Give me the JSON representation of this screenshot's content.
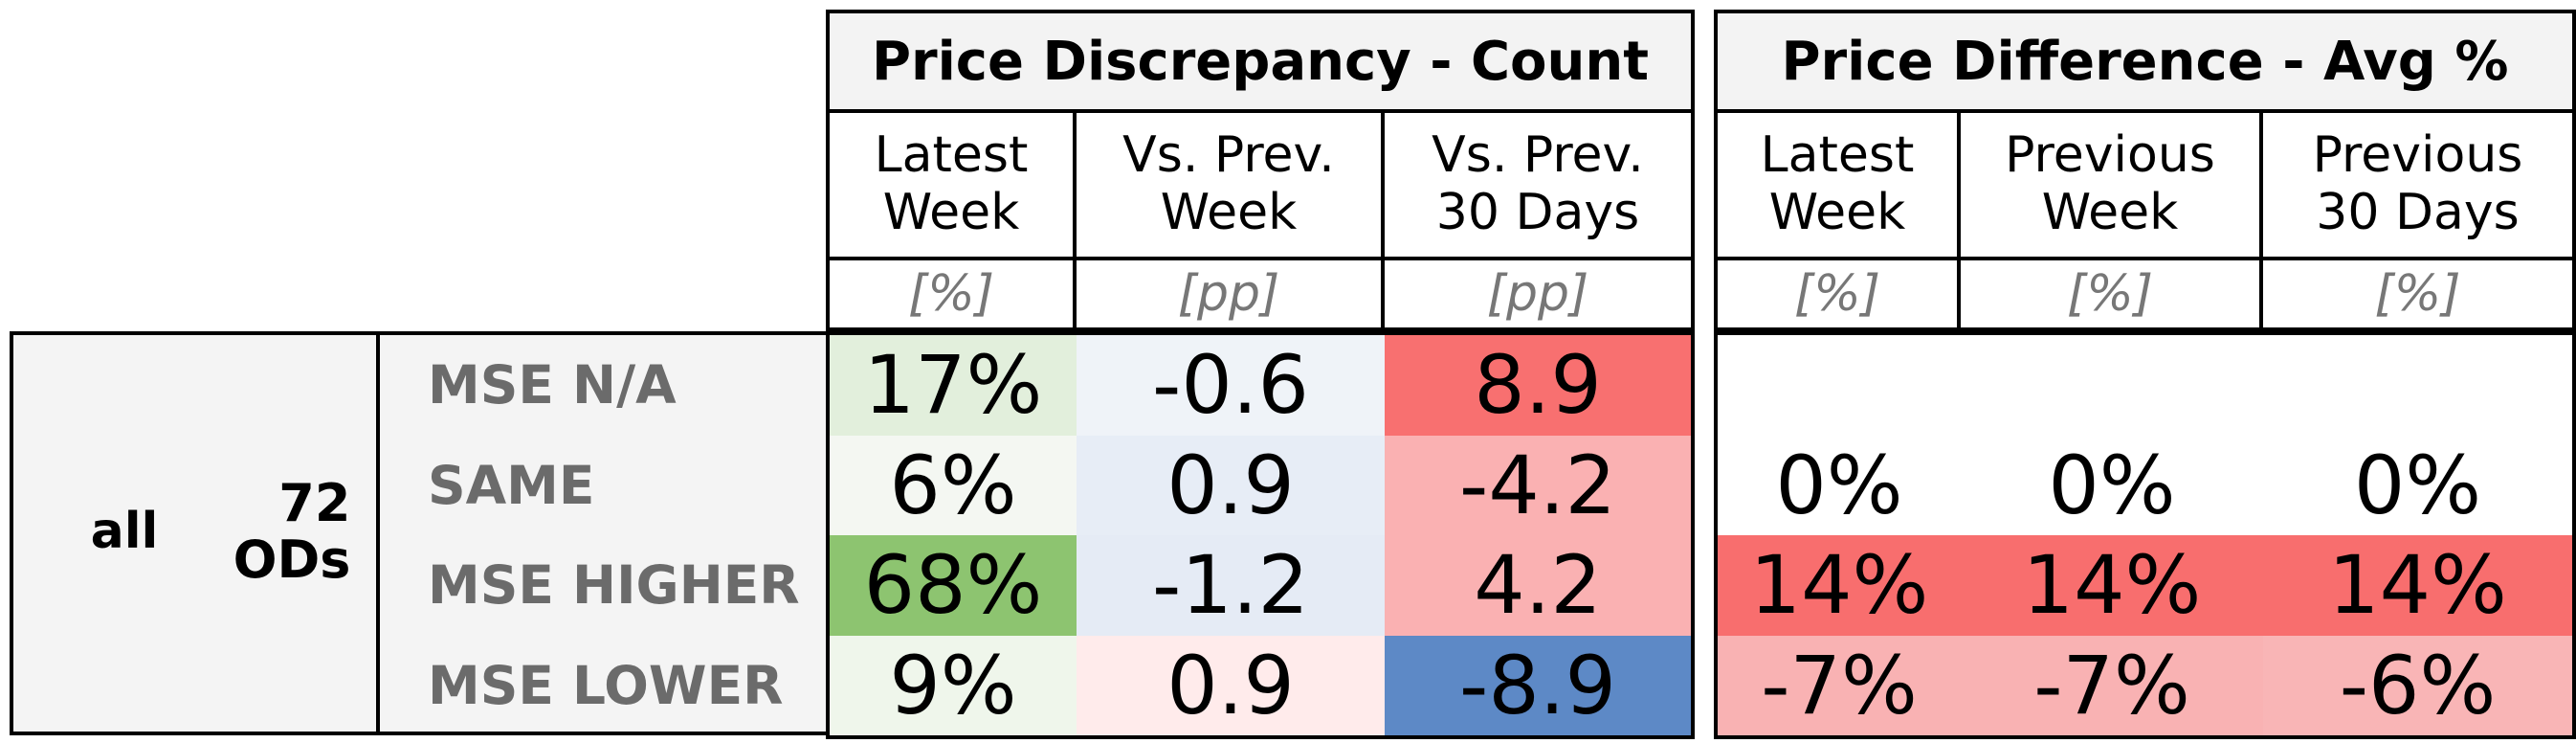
{
  "chart_data": {
    "type": "table",
    "row_group": {
      "label": "all",
      "count_label": "72\nODs"
    },
    "row_labels": [
      "MSE N/A",
      "SAME",
      "MSE HIGHER",
      "MSE LOWER"
    ],
    "panels": [
      {
        "title": "Price Discrepancy - Count",
        "columns": [
          {
            "header": "Latest\nWeek",
            "unit": "[%]",
            "values": [
              "17%",
              "6%",
              "68%",
              "9%"
            ],
            "colors": [
              "#e2efdc",
              "#f4f7f2",
              "#8dc470",
              "#eff6eb"
            ]
          },
          {
            "header": "Vs. Prev.\nWeek",
            "unit": "[pp]",
            "values": [
              "-0.6",
              "0.9",
              "-1.2",
              "0.9"
            ],
            "colors": [
              "#eff3f8",
              "#e7edf6",
              "#e5ebf5",
              "#ffebeb"
            ]
          },
          {
            "header": "Vs. Prev.\n30 Days",
            "unit": "[pp]",
            "values": [
              "8.9",
              "-4.2",
              "4.2",
              "-8.9"
            ],
            "colors": [
              "#f87070",
              "#fab1b2",
              "#fab1b2",
              "#5d89c6"
            ]
          }
        ]
      },
      {
        "title": "Price Difference - Avg %",
        "columns": [
          {
            "header": "Latest\nWeek",
            "unit": "[%]",
            "values": [
              "",
              "0%",
              "14%",
              "-7%"
            ],
            "colors": [
              "#ffffff",
              "#ffffff",
              "#f86e6e",
              "#f9b2b3"
            ]
          },
          {
            "header": "Previous\nWeek",
            "unit": "[%]",
            "values": [
              "",
              "0%",
              "14%",
              "-7%"
            ],
            "colors": [
              "#ffffff",
              "#ffffff",
              "#f86e6e",
              "#f9b2b3"
            ]
          },
          {
            "header": "Previous\n30 Days",
            "unit": "[%]",
            "values": [
              "",
              "0%",
              "14%",
              "-6%"
            ],
            "colors": [
              "#ffffff",
              "#ffffff",
              "#f86e6e",
              "#f9b5b6"
            ]
          }
        ]
      }
    ]
  }
}
